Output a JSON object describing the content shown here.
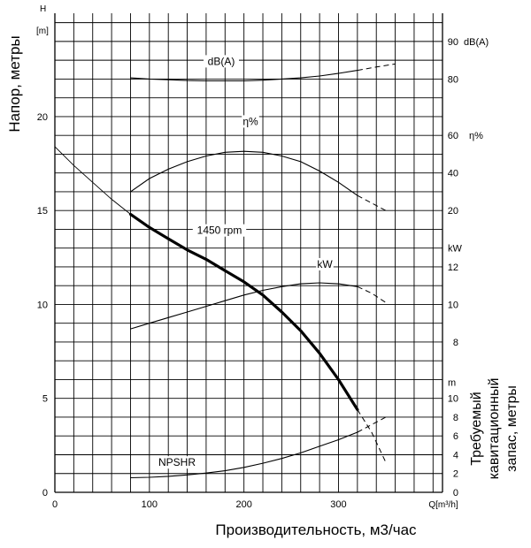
{
  "chart_data": {
    "type": "line",
    "title": "",
    "xlabel": "Производительность, м3/час",
    "ylabel": "Напор, метры",
    "y2label_lines": [
      "Требуемый",
      "кавитационный",
      "запас, метры"
    ],
    "x_unit": "Q[m³/h]",
    "y_unit_lines": [
      "H",
      "[m]"
    ],
    "xlim": [
      0,
      410
    ],
    "ylim": [
      0,
      25.5
    ],
    "x_ticks": [
      0,
      100,
      200,
      300
    ],
    "y_ticks": [
      0,
      5,
      10,
      15,
      20
    ],
    "grid": true,
    "right_axes": [
      {
        "name": "dB(A)",
        "unit": "dB(A)",
        "ticks": [
          80,
          90
        ]
      },
      {
        "name": "η%",
        "unit": "η%",
        "ticks": [
          20,
          40,
          60
        ]
      },
      {
        "name": "kW",
        "unit": "kW",
        "ticks": [
          8,
          10,
          12
        ]
      },
      {
        "name": "NPSHR",
        "unit": "m",
        "ticks": [
          0,
          2,
          4,
          6,
          8,
          10
        ]
      }
    ],
    "series": [
      {
        "name": "1450 rpm",
        "label": "1450 rpm",
        "unit": "m",
        "bold": true,
        "x": [
          0,
          20,
          40,
          60,
          80,
          100,
          120,
          140,
          160,
          180,
          200,
          220,
          240,
          260,
          280,
          300,
          320
        ],
        "y": [
          18.4,
          17.4,
          16.5,
          15.6,
          14.8,
          14.1,
          13.5,
          12.9,
          12.4,
          11.8,
          11.2,
          10.5,
          9.6,
          8.6,
          7.4,
          6.0,
          4.4
        ],
        "thin_x": [
          0,
          20,
          40,
          60,
          80
        ],
        "dashed_x": [
          320,
          335,
          350
        ],
        "dashed_y": [
          4.4,
          3.2,
          1.6
        ]
      },
      {
        "name": "dB(A)",
        "label": "dB(A)",
        "unit": "dB(A)",
        "x": [
          80,
          100,
          120,
          140,
          160,
          180,
          200,
          220,
          240,
          260,
          280,
          300,
          320
        ],
        "y": [
          80.3,
          80.0,
          79.8,
          79.6,
          79.5,
          79.5,
          79.5,
          79.7,
          80.0,
          80.3,
          80.8,
          81.5,
          82.3
        ],
        "dashed_x": [
          320,
          340,
          360
        ],
        "dashed_y": [
          82.3,
          83.2,
          84.0
        ]
      },
      {
        "name": "η%",
        "label": "η%",
        "unit": "%",
        "x": [
          80,
          100,
          120,
          140,
          160,
          180,
          200,
          220,
          240,
          260,
          280,
          300,
          320
        ],
        "y": [
          30,
          37,
          42,
          46,
          49,
          51,
          51.5,
          51,
          49,
          46,
          41,
          35,
          28
        ],
        "dashed_x": [
          320,
          335,
          350
        ],
        "dashed_y": [
          28,
          24,
          20
        ]
      },
      {
        "name": "kW",
        "label": "kW",
        "unit": "kW",
        "x": [
          80,
          100,
          120,
          140,
          160,
          180,
          200,
          220,
          240,
          260,
          280,
          300,
          320
        ],
        "y": [
          8.7,
          9.0,
          9.3,
          9.6,
          9.9,
          10.2,
          10.5,
          10.75,
          10.95,
          11.1,
          11.15,
          11.1,
          10.95
        ],
        "dashed_x": [
          320,
          335,
          350
        ],
        "dashed_y": [
          10.95,
          10.6,
          10.1
        ]
      },
      {
        "name": "NPSHR",
        "label": "NPSHR",
        "unit": "m",
        "x": [
          80,
          100,
          120,
          140,
          160,
          180,
          200,
          220,
          240,
          260,
          280,
          300,
          320
        ],
        "y": [
          1.55,
          1.6,
          1.7,
          1.85,
          2.05,
          2.3,
          2.65,
          3.1,
          3.6,
          4.2,
          4.9,
          5.6,
          6.4
        ],
        "dashed_x": [
          320,
          335,
          350
        ],
        "dashed_y": [
          6.4,
          7.2,
          8.0
        ]
      }
    ]
  }
}
